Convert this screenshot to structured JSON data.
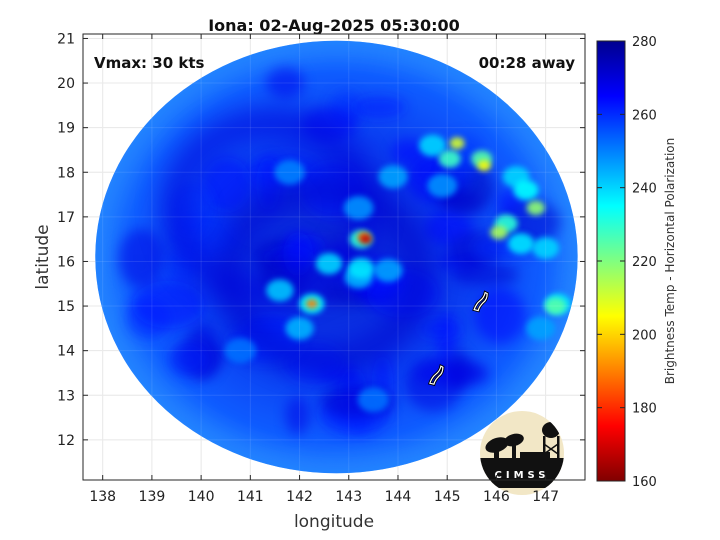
{
  "chart_data": {
    "type": "heatmap",
    "title": "Iona: 02-Aug-2025 05:30:00",
    "annotations": {
      "vmax": "Vmax: 30 kts",
      "time_away": "00:28 away"
    },
    "xlabel": "longitude",
    "ylabel": "latitude",
    "xlim": [
      137.6,
      147.8
    ],
    "ylim": [
      11.1,
      21.1
    ],
    "x_ticks": [
      138,
      139,
      140,
      141,
      142,
      143,
      144,
      145,
      146,
      147
    ],
    "y_ticks": [
      12,
      13,
      14,
      15,
      16,
      17,
      18,
      19,
      20,
      21
    ],
    "grid": true,
    "colorbar": {
      "label": "Brightness Temp - Horizontal Polarization",
      "range": [
        160,
        280
      ],
      "ticks": [
        160,
        180,
        200,
        220,
        240,
        260,
        280
      ],
      "colormap": "jet",
      "stops": [
        "#800000",
        "#ff0000",
        "#ff8000",
        "#ffff00",
        "#80ff80",
        "#00ffff",
        "#0080ff",
        "#0000ff",
        "#00008f"
      ]
    },
    "swath": {
      "center_lon": 142.75,
      "center_lat": 16.1,
      "radius_lon": 4.9,
      "radius_lat": 4.85
    },
    "background_value": 264,
    "features": [
      {
        "lon": 143.35,
        "lat": 16.5,
        "value": 168
      },
      {
        "lon": 143.3,
        "lat": 16.55,
        "value": 190
      },
      {
        "lon": 143.25,
        "lat": 16.5,
        "value": 230
      },
      {
        "lon": 142.25,
        "lat": 15.05,
        "value": 190
      },
      {
        "lon": 142.25,
        "lat": 15.05,
        "value": 235
      },
      {
        "lon": 142.6,
        "lat": 15.95,
        "value": 240
      },
      {
        "lon": 143.25,
        "lat": 15.85,
        "value": 238
      },
      {
        "lon": 141.6,
        "lat": 15.35,
        "value": 242
      },
      {
        "lon": 143.2,
        "lat": 15.65,
        "value": 244
      },
      {
        "lon": 143.8,
        "lat": 15.8,
        "value": 246
      },
      {
        "lon": 142.0,
        "lat": 14.5,
        "value": 244
      },
      {
        "lon": 145.2,
        "lat": 18.65,
        "value": 210
      },
      {
        "lon": 145.05,
        "lat": 18.3,
        "value": 228
      },
      {
        "lon": 145.7,
        "lat": 18.3,
        "value": 225
      },
      {
        "lon": 145.75,
        "lat": 18.15,
        "value": 205
      },
      {
        "lon": 144.7,
        "lat": 18.6,
        "value": 240
      },
      {
        "lon": 146.6,
        "lat": 17.6,
        "value": 235
      },
      {
        "lon": 146.8,
        "lat": 17.2,
        "value": 218
      },
      {
        "lon": 146.2,
        "lat": 16.85,
        "value": 230
      },
      {
        "lon": 146.05,
        "lat": 16.65,
        "value": 215
      },
      {
        "lon": 146.5,
        "lat": 16.4,
        "value": 238
      },
      {
        "lon": 147.0,
        "lat": 16.3,
        "value": 240
      },
      {
        "lon": 147.25,
        "lat": 15.05,
        "value": 238
      },
      {
        "lon": 147.2,
        "lat": 15.0,
        "value": 225
      },
      {
        "lon": 146.4,
        "lat": 17.9,
        "value": 240
      },
      {
        "lon": 144.9,
        "lat": 17.7,
        "value": 248
      },
      {
        "lon": 146.9,
        "lat": 14.5,
        "value": 246
      },
      {
        "lon": 143.9,
        "lat": 17.9,
        "value": 246
      },
      {
        "lon": 143.2,
        "lat": 17.2,
        "value": 248
      },
      {
        "lon": 140.8,
        "lat": 14.0,
        "value": 252
      },
      {
        "lon": 143.5,
        "lat": 12.9,
        "value": 252
      },
      {
        "lon": 141.8,
        "lat": 18.0,
        "value": 250
      }
    ],
    "cool_rings": [
      {
        "lon": 142.5,
        "lat": 15.7,
        "value": 272
      },
      {
        "lon": 141.4,
        "lat": 17.2,
        "value": 270
      }
    ],
    "islands": [
      {
        "name": "",
        "lon": 145.65,
        "lat": 15.1
      },
      {
        "name": "",
        "lon": 144.75,
        "lat": 13.45
      }
    ]
  },
  "logo": {
    "text": "CIMSS"
  }
}
